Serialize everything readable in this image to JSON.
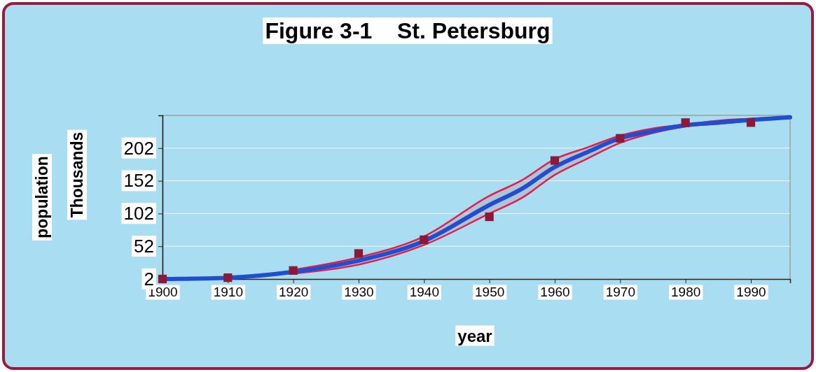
{
  "chart_data": {
    "type": "line",
    "title": "Figure 3-1    St. Petersburg",
    "xlabel": "year",
    "ylabel": "population",
    "annotations": [
      "Thousands"
    ],
    "xlim": [
      1900,
      1996
    ],
    "xticks": [
      1900,
      1910,
      1920,
      1930,
      1940,
      1950,
      1960,
      1970,
      1980,
      1990
    ],
    "ylim": [
      2,
      252
    ],
    "yticks": [
      2,
      52,
      102,
      152,
      202
    ],
    "grid": "y",
    "series": [
      {
        "color": "#1f4fd0",
        "x": [
          1900,
          1910,
          1920,
          1930,
          1940,
          1950,
          1955,
          1960,
          1965,
          1970,
          1975,
          1980,
          1985,
          1990,
          1996
        ],
        "values": [
          2,
          4,
          13,
          30,
          60,
          115,
          140,
          173,
          196,
          217,
          228,
          237,
          241,
          245,
          249
        ],
        "upper": [
          null,
          null,
          16,
          35,
          67,
          129,
          153,
          185,
          203,
          221,
          232,
          238,
          244,
          247,
          250
        ],
        "lower": [
          null,
          null,
          10,
          24,
          54,
          102,
          126,
          161,
          186,
          210,
          225,
          235,
          239,
          244,
          249
        ]
      },
      {
        "type": "scatter",
        "color": "#8b1a3a",
        "marker": "square",
        "x": [
          1900,
          1910,
          1920,
          1930,
          1940,
          1950,
          1960,
          1970,
          1980,
          1990
        ],
        "values": [
          2,
          4,
          15,
          41,
          62,
          97,
          183,
          217,
          241,
          241
        ]
      }
    ]
  }
}
